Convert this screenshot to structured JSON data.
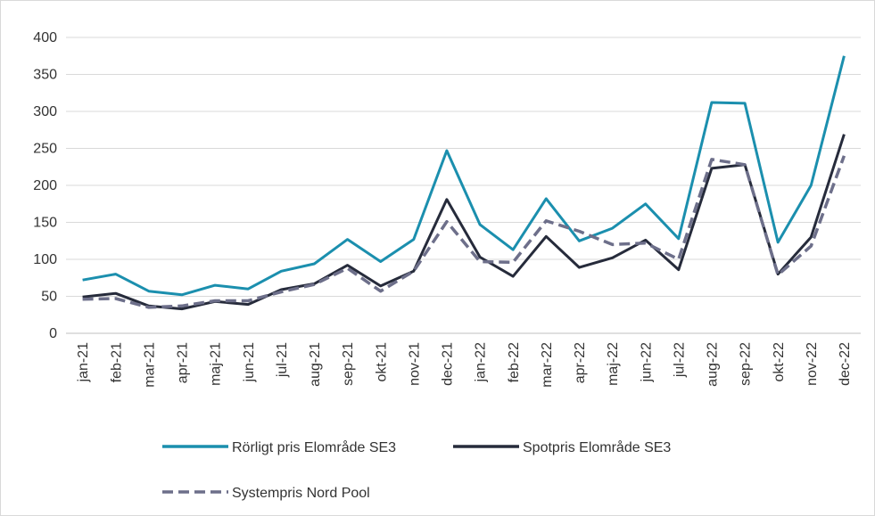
{
  "chart_data": {
    "type": "line",
    "categories": [
      "jan-21",
      "feb-21",
      "mar-21",
      "apr-21",
      "maj-21",
      "jun-21",
      "jul-21",
      "aug-21",
      "sep-21",
      "okt-21",
      "nov-21",
      "dec-21",
      "jan-22",
      "feb-22",
      "mar-22",
      "apr-22",
      "maj-22",
      "jun-22",
      "jul-22",
      "aug-22",
      "sep-22",
      "okt-22",
      "nov-22",
      "dec-22"
    ],
    "y_ticks": [
      "0",
      "50",
      "100",
      "150",
      "200",
      "250",
      "300",
      "350",
      "400"
    ],
    "ylim": [
      0,
      400
    ],
    "grid": "horizontal",
    "legend_position": "bottom",
    "series": [
      {
        "name": "Rörligt pris Elområde SE3",
        "color": "#1b8fae",
        "style": "solid",
        "values": [
          72,
          80,
          57,
          52,
          65,
          60,
          84,
          94,
          127,
          97,
          127,
          247,
          147,
          113,
          182,
          125,
          142,
          175,
          128,
          312,
          311,
          123,
          200,
          375
        ]
      },
      {
        "name": "Spotpris Elområde SE3",
        "color": "#262b3b",
        "style": "solid",
        "values": [
          49,
          54,
          37,
          33,
          43,
          39,
          59,
          67,
          92,
          64,
          84,
          181,
          103,
          77,
          131,
          89,
          102,
          126,
          86,
          223,
          228,
          80,
          130,
          269
        ]
      },
      {
        "name": "Systempris Nord Pool",
        "color": "#6d6f8a",
        "style": "dashed",
        "values": [
          46,
          47,
          35,
          37,
          44,
          44,
          56,
          66,
          88,
          57,
          84,
          151,
          97,
          96,
          152,
          138,
          120,
          122,
          100,
          235,
          228,
          79,
          118,
          240
        ]
      }
    ]
  }
}
